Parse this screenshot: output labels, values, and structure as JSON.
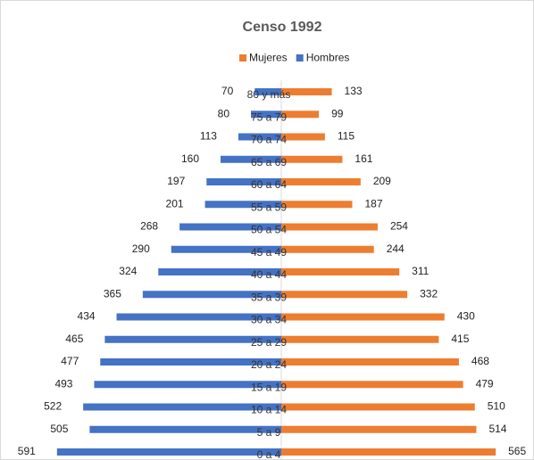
{
  "chart_data": {
    "type": "pyramid",
    "title": "Censo 1992",
    "categories": [
      "80 y más",
      "75 a 79",
      "70 a 74",
      "65 a 69",
      "60 a 64",
      "55 a 59",
      "50 a 54",
      "45 a 49",
      "40 a 44",
      "35 a 39",
      "30 a 34",
      "25 a 29",
      "20 a 24",
      "15 a 19",
      "10 a 14",
      "5 a 9",
      "0 a 4"
    ],
    "series": [
      {
        "name": "Mujeres",
        "color": "#ed7d31",
        "side": "right",
        "values": [
          133,
          99,
          115,
          161,
          209,
          187,
          254,
          244,
          311,
          332,
          430,
          415,
          468,
          479,
          510,
          514,
          565
        ]
      },
      {
        "name": "Hombres",
        "color": "#4472c4",
        "side": "left",
        "values": [
          70,
          80,
          113,
          160,
          197,
          201,
          268,
          290,
          324,
          365,
          434,
          465,
          477,
          493,
          522,
          505,
          591
        ]
      }
    ]
  }
}
